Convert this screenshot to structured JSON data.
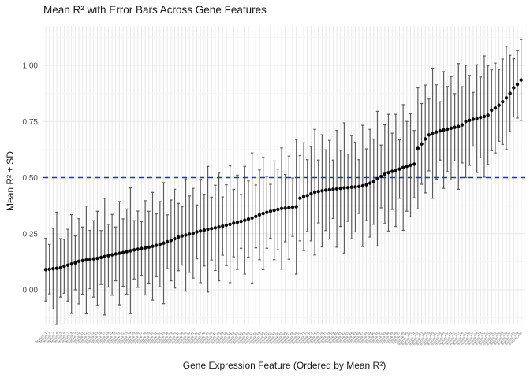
{
  "chart_data": {
    "type": "scatter",
    "title": "Mean R² with Error Bars Across Gene Features",
    "xlabel": "Gene Expression Feature (Ordered by Mean R²)",
    "ylabel": "Mean R² ± SD",
    "legend": "none",
    "grid": true,
    "ylim": [
      -0.155,
      1.175
    ],
    "y_tick_values": [
      0.0,
      0.25,
      0.5,
      0.75,
      1.0
    ],
    "y_tick_labels": [
      "0.00",
      "0.25",
      "0.50",
      "0.75",
      "1.00"
    ],
    "y_minor_ticks": [
      -0.125,
      0.125,
      0.375,
      0.625,
      0.875,
      1.125
    ],
    "reference_line": {
      "value": 0.5,
      "color": "#2a2ae2",
      "style": "dashed"
    },
    "colors": {
      "point": "#0a0a0a",
      "error_bar": "#5c5c5c",
      "grid_major": "#e8e8e8",
      "grid_minor": "#f4f4f4",
      "background": "#ffffff",
      "tick_label": "#4d4d4d",
      "x_tick_label": "#6f6f6f",
      "text": "#1a1a1a"
    },
    "x_labels_illegible": true,
    "categories": [
      "feature_1",
      "feature_2",
      "feature_3",
      "feature_4",
      "feature_5",
      "feature_6",
      "feature_7",
      "feature_8",
      "feature_9",
      "feature_10",
      "feature_11",
      "feature_12",
      "feature_13",
      "feature_14",
      "feature_15",
      "feature_16",
      "feature_17",
      "feature_18",
      "feature_19",
      "feature_20",
      "feature_21",
      "feature_22",
      "feature_23",
      "feature_24",
      "feature_25",
      "feature_26",
      "feature_27",
      "feature_28",
      "feature_29",
      "feature_30",
      "feature_31",
      "feature_32",
      "feature_33",
      "feature_34",
      "feature_35",
      "feature_36",
      "feature_37",
      "feature_38",
      "feature_39",
      "feature_40",
      "feature_41",
      "feature_42",
      "feature_43",
      "feature_44",
      "feature_45",
      "feature_46",
      "feature_47",
      "feature_48",
      "feature_49",
      "feature_50",
      "feature_51",
      "feature_52",
      "feature_53",
      "feature_54",
      "feature_55",
      "feature_56",
      "feature_57",
      "feature_58",
      "feature_59",
      "feature_60",
      "feature_61",
      "feature_62",
      "feature_63",
      "feature_64",
      "feature_65",
      "feature_66",
      "feature_67",
      "feature_68",
      "feature_69",
      "feature_70",
      "feature_71",
      "feature_72",
      "feature_73",
      "feature_74",
      "feature_75",
      "feature_76",
      "feature_77",
      "feature_78",
      "feature_79",
      "feature_80",
      "feature_81",
      "feature_82",
      "feature_83",
      "feature_84",
      "feature_85",
      "feature_86",
      "feature_87",
      "feature_88",
      "feature_89",
      "feature_90",
      "feature_91",
      "feature_92",
      "feature_93",
      "feature_94",
      "feature_95",
      "feature_96",
      "feature_97",
      "feature_98",
      "feature_99",
      "feature_100",
      "feature_101",
      "feature_102",
      "feature_103",
      "feature_104",
      "feature_105",
      "feature_106",
      "feature_107",
      "feature_108",
      "feature_109",
      "feature_110",
      "feature_111",
      "feature_112",
      "feature_113",
      "feature_114",
      "feature_115",
      "feature_116",
      "feature_117",
      "feature_118",
      "feature_119",
      "feature_120",
      "feature_121",
      "feature_122",
      "feature_123",
      "feature_124",
      "feature_125",
      "feature_126",
      "feature_127",
      "feature_128",
      "feature_129",
      "feature_130"
    ],
    "series": [
      {
        "name": "mean_r2",
        "values": [
          0.09,
          0.092,
          0.094,
          0.096,
          0.098,
          0.105,
          0.11,
          0.115,
          0.12,
          0.127,
          0.13,
          0.133,
          0.135,
          0.138,
          0.14,
          0.144,
          0.148,
          0.152,
          0.156,
          0.16,
          0.163,
          0.166,
          0.17,
          0.174,
          0.178,
          0.181,
          0.184,
          0.187,
          0.19,
          0.194,
          0.198,
          0.203,
          0.208,
          0.214,
          0.22,
          0.228,
          0.235,
          0.24,
          0.244,
          0.248,
          0.252,
          0.258,
          0.262,
          0.266,
          0.27,
          0.273,
          0.276,
          0.28,
          0.284,
          0.288,
          0.292,
          0.297,
          0.301,
          0.305,
          0.31,
          0.315,
          0.32,
          0.327,
          0.334,
          0.34,
          0.345,
          0.35,
          0.354,
          0.358,
          0.362,
          0.364,
          0.366,
          0.368,
          0.37,
          0.408,
          0.415,
          0.42,
          0.428,
          0.435,
          0.438,
          0.441,
          0.444,
          0.446,
          0.448,
          0.45,
          0.452,
          0.454,
          0.455,
          0.457,
          0.458,
          0.46,
          0.463,
          0.468,
          0.475,
          0.482,
          0.495,
          0.505,
          0.515,
          0.522,
          0.528,
          0.532,
          0.538,
          0.545,
          0.55,
          0.555,
          0.56,
          0.63,
          0.65,
          0.672,
          0.69,
          0.698,
          0.703,
          0.708,
          0.712,
          0.716,
          0.72,
          0.724,
          0.728,
          0.735,
          0.75,
          0.755,
          0.76,
          0.763,
          0.768,
          0.772,
          0.778,
          0.8,
          0.81,
          0.822,
          0.838,
          0.855,
          0.875,
          0.9,
          0.915,
          0.935
        ]
      },
      {
        "name": "sd",
        "values": [
          0.14,
          0.11,
          0.18,
          0.25,
          0.13,
          0.12,
          0.16,
          0.22,
          0.12,
          0.19,
          0.15,
          0.24,
          0.13,
          0.17,
          0.21,
          0.12,
          0.26,
          0.14,
          0.18,
          0.12,
          0.23,
          0.15,
          0.19,
          0.28,
          0.13,
          0.17,
          0.12,
          0.21,
          0.16,
          0.24,
          0.14,
          0.19,
          0.27,
          0.12,
          0.18,
          0.22,
          0.15,
          0.13,
          0.25,
          0.17,
          0.2,
          0.12,
          0.23,
          0.16,
          0.28,
          0.14,
          0.19,
          0.24,
          0.13,
          0.18,
          0.26,
          0.15,
          0.21,
          0.12,
          0.24,
          0.17,
          0.29,
          0.14,
          0.2,
          0.25,
          0.16,
          0.12,
          0.22,
          0.18,
          0.27,
          0.15,
          0.23,
          0.13,
          0.3,
          0.19,
          0.24,
          0.16,
          0.21,
          0.28,
          0.14,
          0.25,
          0.18,
          0.22,
          0.13,
          0.26,
          0.17,
          0.29,
          0.15,
          0.23,
          0.2,
          0.12,
          0.27,
          0.16,
          0.24,
          0.19,
          0.3,
          0.14,
          0.22,
          0.26,
          0.17,
          0.25,
          0.13,
          0.28,
          0.2,
          0.23,
          0.15,
          0.27,
          0.18,
          0.24,
          0.16,
          0.29,
          0.21,
          0.13,
          0.26,
          0.19,
          0.23,
          0.15,
          0.28,
          0.17,
          0.25,
          0.2,
          0.12,
          0.24,
          0.18,
          0.27,
          0.22,
          0.18,
          0.2,
          0.16,
          0.19,
          0.23,
          0.17,
          0.13,
          0.15,
          0.18
        ]
      }
    ]
  }
}
